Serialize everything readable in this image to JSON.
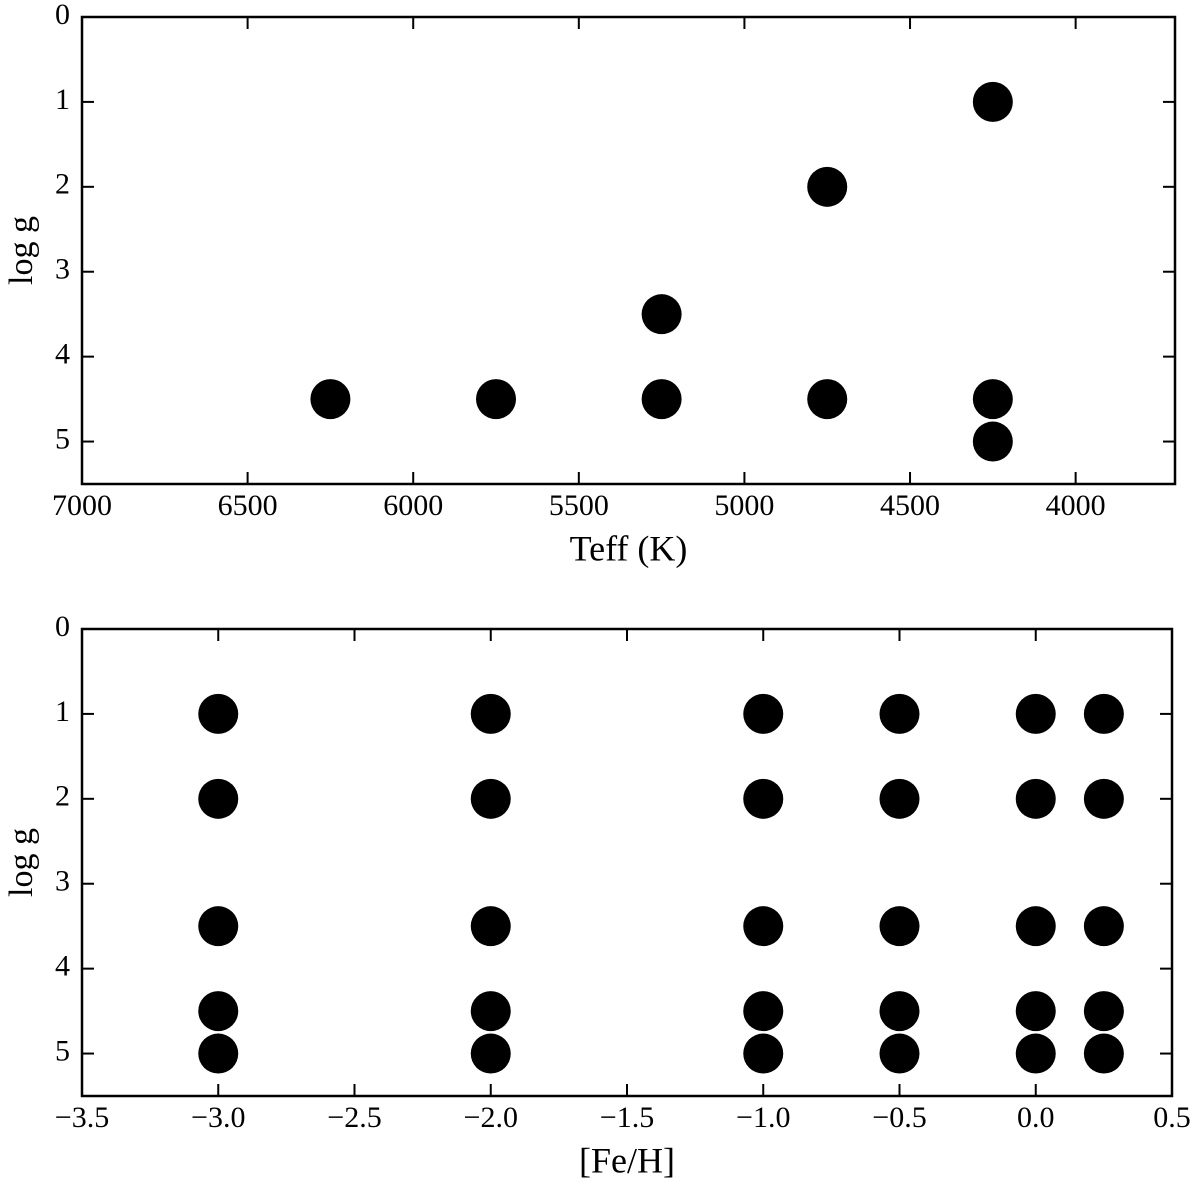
{
  "chart_data": [
    {
      "type": "scatter",
      "xlabel": "Teff (K)",
      "ylabel": "log g",
      "x": [
        6250,
        5750,
        5250,
        5250,
        4750,
        4750,
        4250,
        4250,
        4250
      ],
      "values": [
        4.5,
        4.5,
        4.5,
        3.5,
        4.5,
        2,
        4.5,
        5,
        1
      ],
      "color": "#000000",
      "xlim": [
        7000,
        3700
      ],
      "ylim": [
        5.5,
        0
      ],
      "xticks": [
        7000,
        6500,
        6000,
        5500,
        5000,
        4500,
        4000
      ],
      "yticks": [
        0,
        1,
        2,
        3,
        4,
        5
      ]
    },
    {
      "type": "scatter",
      "xlabel": "[Fe/H]",
      "ylabel": "log g",
      "x": [
        -3,
        -3,
        -3,
        -3,
        -3,
        -2,
        -2,
        -2,
        -2,
        -2,
        -1,
        -1,
        -1,
        -1,
        -1,
        -0.5,
        -0.5,
        -0.5,
        -0.5,
        -0.5,
        0,
        0,
        0,
        0,
        0,
        0.25,
        0.25,
        0.25,
        0.25,
        0.25
      ],
      "values": [
        1,
        2,
        3.5,
        4.5,
        5,
        1,
        2,
        3.5,
        4.5,
        5,
        1,
        2,
        3.5,
        4.5,
        5,
        1,
        2,
        3.5,
        4.5,
        5,
        1,
        2,
        3.5,
        4.5,
        5,
        1,
        2,
        3.5,
        4.5,
        5
      ],
      "color": "#000000",
      "xlim": [
        -3.5,
        0.5
      ],
      "ylim": [
        5.5,
        0
      ],
      "xticks": [
        {
          "value": -3.5,
          "label": "−3.5"
        },
        {
          "value": -3,
          "label": "−3.0"
        },
        {
          "value": -2.5,
          "label": "−2.5"
        },
        {
          "value": -2,
          "label": "−2.0"
        },
        {
          "value": -1.5,
          "label": "−1.5"
        },
        {
          "value": -1,
          "label": "−1.0"
        },
        {
          "value": -0.5,
          "label": "−0.5"
        },
        {
          "value": 0,
          "label": "0.0"
        },
        0.5
      ],
      "yticks": [
        0,
        1,
        2,
        3,
        4,
        5
      ]
    }
  ]
}
